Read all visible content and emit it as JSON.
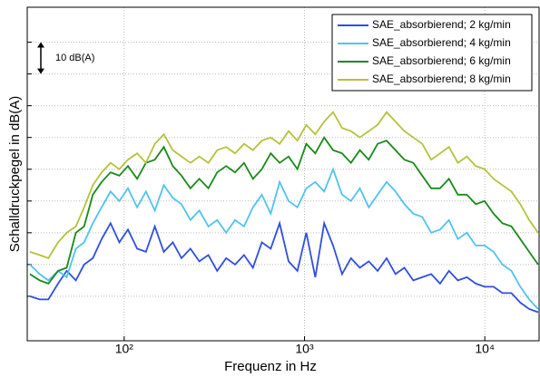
{
  "chart_data": {
    "type": "line",
    "xlabel": "Frequenz in Hz",
    "ylabel": "Schalldruckpegel in dB(A)",
    "annotation": "10 dB(A)",
    "log_x": true,
    "grid": true,
    "legend": "upper right",
    "xlim": [
      29,
      20000
    ],
    "xticks": [
      {
        "value": 100,
        "label": "10²"
      },
      {
        "value": 1000,
        "label": "10³"
      },
      {
        "value": 10000,
        "label": "10⁴"
      }
    ],
    "ylim": [
      -4,
      101
    ],
    "yticks": [
      10,
      20,
      30,
      40,
      50,
      60,
      70,
      80,
      90
    ],
    "x": [
      30,
      34,
      38,
      43,
      48,
      54,
      60,
      67,
      75,
      84,
      94,
      105,
      118,
      132,
      148,
      166,
      186,
      208,
      233,
      261,
      293,
      328,
      368,
      412,
      462,
      518,
      580,
      650,
      728,
      816,
      914,
      1024,
      1148,
      1286,
      1441,
      1615,
      1810,
      2028,
      2272,
      2546,
      2853,
      3197,
      3582,
      4014,
      4498,
      5040,
      5648,
      6329,
      7092,
      7947,
      8905,
      9978,
      11181,
      12529,
      14040,
      15733,
      17630,
      19755
    ],
    "series": [
      {
        "name": "SAE_absorbierend; 2 kg/min",
        "color": "#2f4fe0",
        "values": [
          10,
          9,
          9,
          14,
          18,
          15,
          20,
          22,
          28,
          33,
          27,
          31,
          25,
          24,
          32,
          24,
          27,
          22,
          25,
          21,
          23,
          18,
          22,
          20,
          23,
          19,
          27,
          25,
          33,
          21,
          18,
          30,
          16,
          33,
          26,
          17,
          22,
          19,
          21,
          18,
          22,
          17,
          19,
          15,
          16,
          17,
          14,
          18,
          15,
          16,
          14,
          13,
          13,
          11,
          11,
          8,
          6,
          5
        ]
      },
      {
        "name": "SAE_absorbierend; 4 kg/min",
        "color": "#4fc3f0",
        "values": [
          20,
          17,
          15,
          18,
          16,
          25,
          27,
          33,
          38,
          43,
          40,
          44,
          38,
          43,
          37,
          45,
          41,
          39,
          34,
          37,
          32,
          34,
          30,
          34,
          32,
          38,
          42,
          36,
          46,
          40,
          38,
          44,
          46,
          43,
          50,
          42,
          40,
          44,
          38,
          42,
          46,
          43,
          39,
          36,
          35,
          30,
          31,
          34,
          28,
          30,
          26,
          26,
          24,
          20,
          18,
          13,
          9,
          6
        ]
      },
      {
        "name": "SAE_absorbierend; 6 kg/min",
        "color": "#1a8a1a",
        "values": [
          17,
          15,
          14,
          18,
          19,
          30,
          32,
          42,
          46,
          49,
          48,
          51,
          47,
          52,
          53,
          57,
          51,
          48,
          44,
          47,
          44,
          49,
          51,
          49,
          52,
          47,
          50,
          55,
          52,
          54,
          50,
          58,
          55,
          60,
          56,
          55,
          52,
          56,
          53,
          58,
          59,
          56,
          53,
          52,
          48,
          44,
          44,
          47,
          42,
          42,
          39,
          40,
          36,
          33,
          32,
          28,
          24,
          20
        ]
      },
      {
        "name": "SAE_absorbierend; 8 kg/min",
        "color": "#b5c23a",
        "values": [
          24,
          23,
          22,
          27,
          30,
          32,
          38,
          45,
          49,
          52,
          50,
          53,
          55,
          52,
          58,
          61,
          56,
          54,
          52,
          54,
          52,
          56,
          57,
          55,
          58,
          56,
          59,
          60,
          58,
          62,
          59,
          64,
          61,
          65,
          68,
          63,
          62,
          60,
          62,
          64,
          68,
          65,
          62,
          60,
          58,
          53,
          55,
          57,
          52,
          54,
          51,
          50,
          47,
          45,
          43,
          39,
          34,
          30
        ]
      }
    ]
  }
}
